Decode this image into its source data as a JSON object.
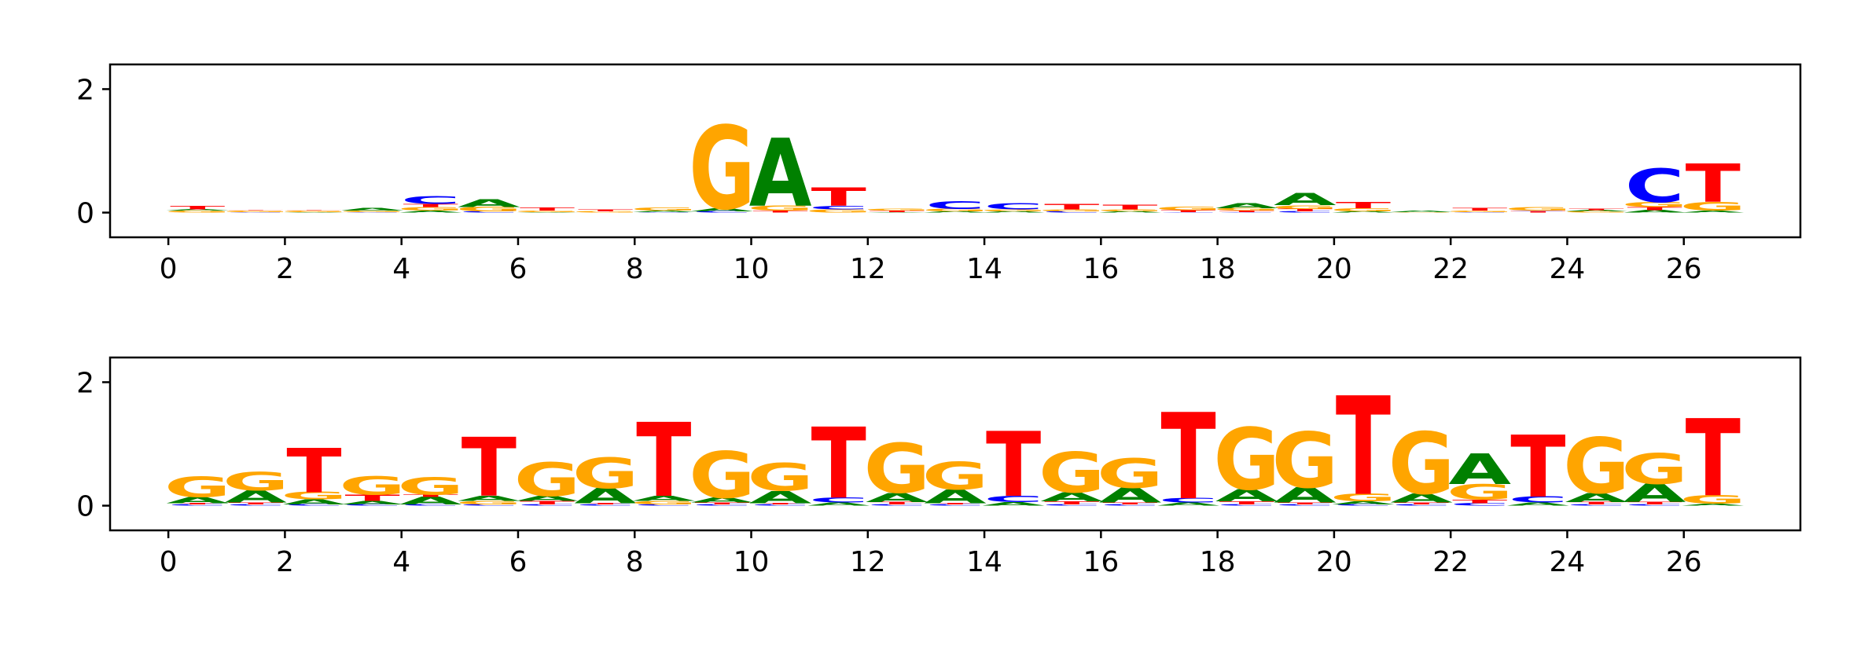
{
  "chart_data": [
    {
      "type": "sequence-logo",
      "x_ticks": [
        "0",
        "2",
        "4",
        "6",
        "8",
        "10",
        "12",
        "14",
        "16",
        "18",
        "20",
        "22",
        "24",
        "26"
      ],
      "y_ticks": [
        "0",
        "2"
      ],
      "xlim": [
        -1,
        28
      ],
      "ylim": [
        -0.4,
        2.4
      ],
      "colors": {
        "A": "#008000",
        "C": "#0000ff",
        "G": "#ffa500",
        "T": "#ff0000"
      },
      "positions": [
        {
          "x": 0,
          "letters": [
            [
              "G",
              0.03
            ],
            [
              "A",
              0.02
            ],
            [
              "T",
              0.06
            ]
          ]
        },
        {
          "x": 1,
          "letters": [
            [
              "C",
              0.01
            ],
            [
              "G",
              0.02
            ],
            [
              "T",
              0.01
            ]
          ]
        },
        {
          "x": 2,
          "letters": [
            [
              "A",
              0.01
            ],
            [
              "G",
              0.02
            ],
            [
              "T",
              0.01
            ]
          ]
        },
        {
          "x": 3,
          "letters": [
            [
              "C",
              0.01
            ],
            [
              "G",
              0.02
            ],
            [
              "A",
              0.04
            ]
          ]
        },
        {
          "x": 4,
          "letters": [
            [
              "A",
              0.03
            ],
            [
              "G",
              0.06
            ],
            [
              "T",
              0.05
            ],
            [
              "C",
              0.12
            ]
          ]
        },
        {
          "x": 5,
          "letters": [
            [
              "C",
              0.02
            ],
            [
              "G",
              0.07
            ],
            [
              "A",
              0.12
            ]
          ]
        },
        {
          "x": 6,
          "letters": [
            [
              "A",
              0.01
            ],
            [
              "G",
              0.02
            ],
            [
              "T",
              0.05
            ]
          ]
        },
        {
          "x": 7,
          "letters": [
            [
              "G",
              0.02
            ],
            [
              "T",
              0.03
            ]
          ]
        },
        {
          "x": 8,
          "letters": [
            [
              "C",
              0.01
            ],
            [
              "A",
              0.02
            ],
            [
              "G",
              0.05
            ]
          ]
        },
        {
          "x": 9,
          "letters": [
            [
              "C",
              0.02
            ],
            [
              "A",
              0.05
            ],
            [
              "G",
              1.35
            ]
          ]
        },
        {
          "x": 10,
          "letters": [
            [
              "T",
              0.03
            ],
            [
              "G",
              0.08
            ],
            [
              "A",
              1.1
            ]
          ]
        },
        {
          "x": 11,
          "letters": [
            [
              "G",
              0.05
            ],
            [
              "C",
              0.06
            ],
            [
              "T",
              0.3
            ]
          ]
        },
        {
          "x": 12,
          "letters": [
            [
              "A",
              0.01
            ],
            [
              "T",
              0.02
            ],
            [
              "G",
              0.03
            ]
          ]
        },
        {
          "x": 13,
          "letters": [
            [
              "A",
              0.02
            ],
            [
              "G",
              0.04
            ],
            [
              "C",
              0.12
            ]
          ]
        },
        {
          "x": 14,
          "letters": [
            [
              "A",
              0.02
            ],
            [
              "G",
              0.03
            ],
            [
              "C",
              0.1
            ]
          ]
        },
        {
          "x": 15,
          "letters": [
            [
              "C",
              0.02
            ],
            [
              "G",
              0.03
            ],
            [
              "T",
              0.09
            ]
          ]
        },
        {
          "x": 16,
          "letters": [
            [
              "A",
              0.02
            ],
            [
              "G",
              0.03
            ],
            [
              "T",
              0.07
            ]
          ]
        },
        {
          "x": 17,
          "letters": [
            [
              "C",
              0.01
            ],
            [
              "T",
              0.03
            ],
            [
              "G",
              0.06
            ]
          ]
        },
        {
          "x": 18,
          "letters": [
            [
              "C",
              0.01
            ],
            [
              "T",
              0.02
            ],
            [
              "G",
              0.04
            ],
            [
              "A",
              0.08
            ]
          ]
        },
        {
          "x": 19,
          "letters": [
            [
              "C",
              0.02
            ],
            [
              "T",
              0.04
            ],
            [
              "G",
              0.06
            ],
            [
              "A",
              0.2
            ]
          ]
        },
        {
          "x": 20,
          "letters": [
            [
              "A",
              0.02
            ],
            [
              "G",
              0.05
            ],
            [
              "T",
              0.1
            ]
          ]
        },
        {
          "x": 21,
          "letters": [
            [
              "G",
              0.01
            ],
            [
              "A",
              0.02
            ]
          ]
        },
        {
          "x": 22,
          "letters": [
            [
              "C",
              0.01
            ],
            [
              "G",
              0.02
            ],
            [
              "T",
              0.04
            ]
          ]
        },
        {
          "x": 23,
          "letters": [
            [
              "T",
              0.02
            ],
            [
              "C",
              0.01
            ],
            [
              "G",
              0.06
            ]
          ]
        },
        {
          "x": 24,
          "letters": [
            [
              "G",
              0.02
            ],
            [
              "A",
              0.02
            ],
            [
              "T",
              0.02
            ]
          ]
        },
        {
          "x": 25,
          "letters": [
            [
              "A",
              0.04
            ],
            [
              "T",
              0.05
            ],
            [
              "G",
              0.08
            ],
            [
              "C",
              0.55
            ]
          ]
        },
        {
          "x": 26,
          "letters": [
            [
              "A",
              0.03
            ],
            [
              "G",
              0.14
            ],
            [
              "T",
              0.62
            ]
          ]
        }
      ]
    },
    {
      "type": "sequence-logo",
      "x_ticks": [
        "0",
        "2",
        "4",
        "6",
        "8",
        "10",
        "12",
        "14",
        "16",
        "18",
        "20",
        "22",
        "24",
        "26"
      ],
      "y_ticks": [
        "0",
        "2"
      ],
      "xlim": [
        -1,
        28
      ],
      "ylim": [
        -0.4,
        2.4
      ],
      "colors": {
        "A": "#008000",
        "C": "#0000ff",
        "G": "#ffa500",
        "T": "#ff0000"
      },
      "positions": [
        {
          "x": 0,
          "letters": [
            [
              "C",
              0.02
            ],
            [
              "T",
              0.02
            ],
            [
              "A",
              0.1
            ],
            [
              "G",
              0.33
            ]
          ]
        },
        {
          "x": 1,
          "letters": [
            [
              "C",
              0.02
            ],
            [
              "T",
              0.03
            ],
            [
              "A",
              0.2
            ],
            [
              "G",
              0.3
            ]
          ]
        },
        {
          "x": 2,
          "letters": [
            [
              "C",
              0.02
            ],
            [
              "A",
              0.08
            ],
            [
              "G",
              0.12
            ],
            [
              "T",
              0.72
            ]
          ]
        },
        {
          "x": 3,
          "letters": [
            [
              "C",
              0.02
            ],
            [
              "A",
              0.06
            ],
            [
              "T",
              0.1
            ],
            [
              "G",
              0.3
            ]
          ]
        },
        {
          "x": 4,
          "letters": [
            [
              "C",
              0.02
            ],
            [
              "A",
              0.12
            ],
            [
              "T",
              0.04
            ],
            [
              "G",
              0.28
            ]
          ]
        },
        {
          "x": 5,
          "letters": [
            [
              "C",
              0.02
            ],
            [
              "G",
              0.06
            ],
            [
              "A",
              0.08
            ],
            [
              "T",
              0.95
            ]
          ]
        },
        {
          "x": 6,
          "letters": [
            [
              "C",
              0.02
            ],
            [
              "T",
              0.06
            ],
            [
              "A",
              0.08
            ],
            [
              "G",
              0.55
            ]
          ]
        },
        {
          "x": 7,
          "letters": [
            [
              "C",
              0.02
            ],
            [
              "T",
              0.02
            ],
            [
              "A",
              0.25
            ],
            [
              "G",
              0.5
            ]
          ]
        },
        {
          "x": 8,
          "letters": [
            [
              "C",
              0.02
            ],
            [
              "G",
              0.06
            ],
            [
              "A",
              0.08
            ],
            [
              "T",
              1.2
            ]
          ]
        },
        {
          "x": 9,
          "letters": [
            [
              "C",
              0.02
            ],
            [
              "T",
              0.03
            ],
            [
              "A",
              0.08
            ],
            [
              "G",
              0.75
            ]
          ]
        },
        {
          "x": 10,
          "letters": [
            [
              "C",
              0.02
            ],
            [
              "T",
              0.02
            ],
            [
              "A",
              0.2
            ],
            [
              "G",
              0.45
            ]
          ]
        },
        {
          "x": 11,
          "letters": [
            [
              "A",
              0.05
            ],
            [
              "C",
              0.08
            ],
            [
              "T",
              1.15
            ]
          ]
        },
        {
          "x": 12,
          "letters": [
            [
              "C",
              0.02
            ],
            [
              "T",
              0.04
            ],
            [
              "A",
              0.15
            ],
            [
              "G",
              0.8
            ]
          ]
        },
        {
          "x": 13,
          "letters": [
            [
              "C",
              0.02
            ],
            [
              "T",
              0.02
            ],
            [
              "A",
              0.22
            ],
            [
              "G",
              0.45
            ]
          ]
        },
        {
          "x": 14,
          "letters": [
            [
              "A",
              0.06
            ],
            [
              "C",
              0.1
            ],
            [
              "T",
              1.05
            ]
          ]
        },
        {
          "x": 15,
          "letters": [
            [
              "C",
              0.02
            ],
            [
              "T",
              0.05
            ],
            [
              "A",
              0.15
            ],
            [
              "G",
              0.65
            ]
          ]
        },
        {
          "x": 16,
          "letters": [
            [
              "C",
              0.02
            ],
            [
              "T",
              0.03
            ],
            [
              "A",
              0.24
            ],
            [
              "G",
              0.48
            ]
          ]
        },
        {
          "x": 17,
          "letters": [
            [
              "A",
              0.05
            ],
            [
              "C",
              0.07
            ],
            [
              "T",
              1.4
            ]
          ]
        },
        {
          "x": 18,
          "letters": [
            [
              "C",
              0.02
            ],
            [
              "T",
              0.05
            ],
            [
              "A",
              0.2
            ],
            [
              "G",
              1.0
            ]
          ]
        },
        {
          "x": 19,
          "letters": [
            [
              "C",
              0.02
            ],
            [
              "T",
              0.03
            ],
            [
              "A",
              0.25
            ],
            [
              "G",
              0.9
            ]
          ]
        },
        {
          "x": 20,
          "letters": [
            [
              "C",
              0.02
            ],
            [
              "A",
              0.05
            ],
            [
              "G",
              0.12
            ],
            [
              "T",
              1.6
            ]
          ]
        },
        {
          "x": 21,
          "letters": [
            [
              "C",
              0.02
            ],
            [
              "T",
              0.03
            ],
            [
              "A",
              0.15
            ],
            [
              "G",
              1.0
            ]
          ]
        },
        {
          "x": 22,
          "letters": [
            [
              "C",
              0.04
            ],
            [
              "T",
              0.06
            ],
            [
              "G",
              0.25
            ],
            [
              "A",
              0.5
            ]
          ]
        },
        {
          "x": 23,
          "letters": [
            [
              "A",
              0.05
            ],
            [
              "C",
              0.1
            ],
            [
              "T",
              1.0
            ]
          ]
        },
        {
          "x": 24,
          "letters": [
            [
              "C",
              0.02
            ],
            [
              "T",
              0.04
            ],
            [
              "A",
              0.15
            ],
            [
              "G",
              0.9
            ]
          ]
        },
        {
          "x": 25,
          "letters": [
            [
              "C",
              0.02
            ],
            [
              "T",
              0.04
            ],
            [
              "A",
              0.3
            ],
            [
              "G",
              0.5
            ]
          ]
        },
        {
          "x": 26,
          "letters": [
            [
              "A",
              0.03
            ],
            [
              "G",
              0.14
            ],
            [
              "T",
              1.25
            ]
          ]
        }
      ]
    }
  ]
}
